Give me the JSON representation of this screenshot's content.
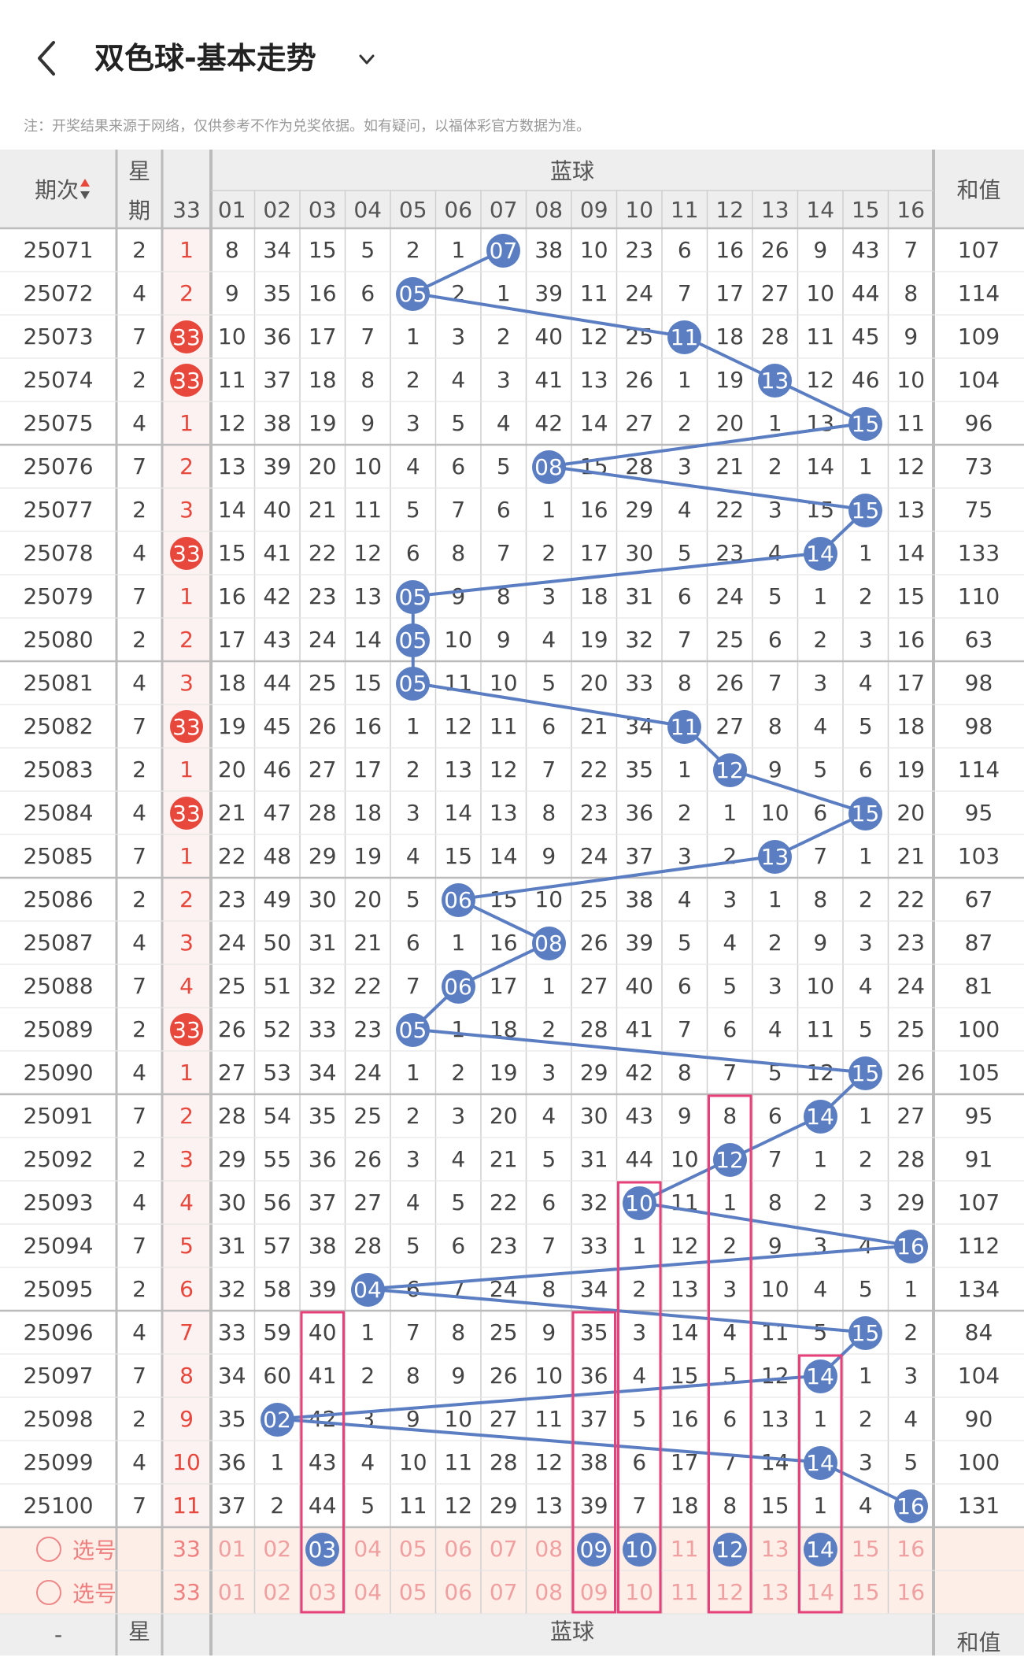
{
  "header": {
    "title": "双色球-基本走势",
    "notice": "注：开奖结果来源于网络，仅供参考不作为兑奖依据。如有疑问，以福体彩官方数据为准。"
  },
  "table": {
    "col_issue": "期次",
    "col_week_1": "星",
    "col_week_2": "期",
    "col_red_33": "33",
    "col_blue_group": "蓝球",
    "col_sum": "和值",
    "blue_numbers": [
      "01",
      "02",
      "03",
      "04",
      "05",
      "06",
      "07",
      "08",
      "09",
      "10",
      "11",
      "12",
      "13",
      "14",
      "15",
      "16"
    ],
    "rows": [
      {
        "issue": "25071",
        "week": "2",
        "c33": "1",
        "c33_hit": false,
        "blue": [
          "8",
          "34",
          "15",
          "5",
          "2",
          "1",
          "07",
          "38",
          "10",
          "23",
          "6",
          "16",
          "26",
          "9",
          "43",
          "7"
        ],
        "hit": 7,
        "sum": "107"
      },
      {
        "issue": "25072",
        "week": "4",
        "c33": "2",
        "c33_hit": false,
        "blue": [
          "9",
          "35",
          "16",
          "6",
          "05",
          "2",
          "1",
          "39",
          "11",
          "24",
          "7",
          "17",
          "27",
          "10",
          "44",
          "8"
        ],
        "hit": 5,
        "sum": "114"
      },
      {
        "issue": "25073",
        "week": "7",
        "c33": "33",
        "c33_hit": true,
        "blue": [
          "10",
          "36",
          "17",
          "7",
          "1",
          "3",
          "2",
          "40",
          "12",
          "25",
          "11",
          "18",
          "28",
          "11",
          "45",
          "9"
        ],
        "hit": 11,
        "sum": "109"
      },
      {
        "issue": "25074",
        "week": "2",
        "c33": "33",
        "c33_hit": true,
        "blue": [
          "11",
          "37",
          "18",
          "8",
          "2",
          "4",
          "3",
          "41",
          "13",
          "26",
          "1",
          "19",
          "13",
          "12",
          "46",
          "10"
        ],
        "hit": 13,
        "sum": "104"
      },
      {
        "issue": "25075",
        "week": "4",
        "c33": "1",
        "c33_hit": false,
        "blue": [
          "12",
          "38",
          "19",
          "9",
          "3",
          "5",
          "4",
          "42",
          "14",
          "27",
          "2",
          "20",
          "1",
          "13",
          "15",
          "11"
        ],
        "hit": 15,
        "sum": "96"
      },
      {
        "issue": "25076",
        "week": "7",
        "c33": "2",
        "c33_hit": false,
        "blue": [
          "13",
          "39",
          "20",
          "10",
          "4",
          "6",
          "5",
          "08",
          "15",
          "28",
          "3",
          "21",
          "2",
          "14",
          "1",
          "12"
        ],
        "hit": 8,
        "sum": "73"
      },
      {
        "issue": "25077",
        "week": "2",
        "c33": "3",
        "c33_hit": false,
        "blue": [
          "14",
          "40",
          "21",
          "11",
          "5",
          "7",
          "6",
          "1",
          "16",
          "29",
          "4",
          "22",
          "3",
          "15",
          "15",
          "13"
        ],
        "hit": 15,
        "sum": "75"
      },
      {
        "issue": "25078",
        "week": "4",
        "c33": "33",
        "c33_hit": true,
        "blue": [
          "15",
          "41",
          "22",
          "12",
          "6",
          "8",
          "7",
          "2",
          "17",
          "30",
          "5",
          "23",
          "4",
          "14",
          "1",
          "14"
        ],
        "hit": 14,
        "sum": "133"
      },
      {
        "issue": "25079",
        "week": "7",
        "c33": "1",
        "c33_hit": false,
        "blue": [
          "16",
          "42",
          "23",
          "13",
          "05",
          "9",
          "8",
          "3",
          "18",
          "31",
          "6",
          "24",
          "5",
          "1",
          "2",
          "15"
        ],
        "hit": 5,
        "sum": "110"
      },
      {
        "issue": "25080",
        "week": "2",
        "c33": "2",
        "c33_hit": false,
        "blue": [
          "17",
          "43",
          "24",
          "14",
          "05",
          "10",
          "9",
          "4",
          "19",
          "32",
          "7",
          "25",
          "6",
          "2",
          "3",
          "16"
        ],
        "hit": 5,
        "sum": "63"
      },
      {
        "issue": "25081",
        "week": "4",
        "c33": "3",
        "c33_hit": false,
        "blue": [
          "18",
          "44",
          "25",
          "15",
          "05",
          "11",
          "10",
          "5",
          "20",
          "33",
          "8",
          "26",
          "7",
          "3",
          "4",
          "17"
        ],
        "hit": 5,
        "sum": "98"
      },
      {
        "issue": "25082",
        "week": "7",
        "c33": "33",
        "c33_hit": true,
        "blue": [
          "19",
          "45",
          "26",
          "16",
          "1",
          "12",
          "11",
          "6",
          "21",
          "34",
          "11",
          "27",
          "8",
          "4",
          "5",
          "18"
        ],
        "hit": 11,
        "sum": "98"
      },
      {
        "issue": "25083",
        "week": "2",
        "c33": "1",
        "c33_hit": false,
        "blue": [
          "20",
          "46",
          "27",
          "17",
          "2",
          "13",
          "12",
          "7",
          "22",
          "35",
          "1",
          "12",
          "9",
          "5",
          "6",
          "19"
        ],
        "hit": 12,
        "sum": "114"
      },
      {
        "issue": "25084",
        "week": "4",
        "c33": "33",
        "c33_hit": true,
        "blue": [
          "21",
          "47",
          "28",
          "18",
          "3",
          "14",
          "13",
          "8",
          "23",
          "36",
          "2",
          "1",
          "10",
          "6",
          "15",
          "20"
        ],
        "hit": 15,
        "sum": "95"
      },
      {
        "issue": "25085",
        "week": "7",
        "c33": "1",
        "c33_hit": false,
        "blue": [
          "22",
          "48",
          "29",
          "19",
          "4",
          "15",
          "14",
          "9",
          "24",
          "37",
          "3",
          "2",
          "13",
          "7",
          "1",
          "21"
        ],
        "hit": 13,
        "sum": "103"
      },
      {
        "issue": "25086",
        "week": "2",
        "c33": "2",
        "c33_hit": false,
        "blue": [
          "23",
          "49",
          "30",
          "20",
          "5",
          "06",
          "15",
          "10",
          "25",
          "38",
          "4",
          "3",
          "1",
          "8",
          "2",
          "22"
        ],
        "hit": 6,
        "sum": "67"
      },
      {
        "issue": "25087",
        "week": "4",
        "c33": "3",
        "c33_hit": false,
        "blue": [
          "24",
          "50",
          "31",
          "21",
          "6",
          "1",
          "16",
          "08",
          "26",
          "39",
          "5",
          "4",
          "2",
          "9",
          "3",
          "23"
        ],
        "hit": 8,
        "sum": "87"
      },
      {
        "issue": "25088",
        "week": "7",
        "c33": "4",
        "c33_hit": false,
        "blue": [
          "25",
          "51",
          "32",
          "22",
          "7",
          "06",
          "17",
          "1",
          "27",
          "40",
          "6",
          "5",
          "3",
          "10",
          "4",
          "24"
        ],
        "hit": 6,
        "sum": "81"
      },
      {
        "issue": "25089",
        "week": "2",
        "c33": "33",
        "c33_hit": true,
        "blue": [
          "26",
          "52",
          "33",
          "23",
          "05",
          "1",
          "18",
          "2",
          "28",
          "41",
          "7",
          "6",
          "4",
          "11",
          "5",
          "25"
        ],
        "hit": 5,
        "sum": "100"
      },
      {
        "issue": "25090",
        "week": "4",
        "c33": "1",
        "c33_hit": false,
        "blue": [
          "27",
          "53",
          "34",
          "24",
          "1",
          "2",
          "19",
          "3",
          "29",
          "42",
          "8",
          "7",
          "5",
          "12",
          "15",
          "26"
        ],
        "hit": 15,
        "sum": "105"
      },
      {
        "issue": "25091",
        "week": "7",
        "c33": "2",
        "c33_hit": false,
        "blue": [
          "28",
          "54",
          "35",
          "25",
          "2",
          "3",
          "20",
          "4",
          "30",
          "43",
          "9",
          "8",
          "6",
          "14",
          "1",
          "27"
        ],
        "hit": 14,
        "sum": "95"
      },
      {
        "issue": "25092",
        "week": "2",
        "c33": "3",
        "c33_hit": false,
        "blue": [
          "29",
          "55",
          "36",
          "26",
          "3",
          "4",
          "21",
          "5",
          "31",
          "44",
          "10",
          "12",
          "7",
          "1",
          "2",
          "28"
        ],
        "hit": 12,
        "sum": "91"
      },
      {
        "issue": "25093",
        "week": "4",
        "c33": "4",
        "c33_hit": false,
        "blue": [
          "30",
          "56",
          "37",
          "27",
          "4",
          "5",
          "22",
          "6",
          "32",
          "10",
          "11",
          "1",
          "8",
          "2",
          "3",
          "29"
        ],
        "hit": 10,
        "sum": "107"
      },
      {
        "issue": "25094",
        "week": "7",
        "c33": "5",
        "c33_hit": false,
        "blue": [
          "31",
          "57",
          "38",
          "28",
          "5",
          "6",
          "23",
          "7",
          "33",
          "1",
          "12",
          "2",
          "9",
          "3",
          "4",
          "16"
        ],
        "hit": 16,
        "sum": "112"
      },
      {
        "issue": "25095",
        "week": "2",
        "c33": "6",
        "c33_hit": false,
        "blue": [
          "32",
          "58",
          "39",
          "04",
          "6",
          "7",
          "24",
          "8",
          "34",
          "2",
          "13",
          "3",
          "10",
          "4",
          "5",
          "1"
        ],
        "hit": 4,
        "sum": "134"
      },
      {
        "issue": "25096",
        "week": "4",
        "c33": "7",
        "c33_hit": false,
        "blue": [
          "33",
          "59",
          "40",
          "1",
          "7",
          "8",
          "25",
          "9",
          "35",
          "3",
          "14",
          "4",
          "11",
          "5",
          "15",
          "2"
        ],
        "hit": 15,
        "sum": "84"
      },
      {
        "issue": "25097",
        "week": "7",
        "c33": "8",
        "c33_hit": false,
        "blue": [
          "34",
          "60",
          "41",
          "2",
          "8",
          "9",
          "26",
          "10",
          "36",
          "4",
          "15",
          "5",
          "12",
          "14",
          "1",
          "3"
        ],
        "hit": 14,
        "sum": "104"
      },
      {
        "issue": "25098",
        "week": "2",
        "c33": "9",
        "c33_hit": false,
        "blue": [
          "35",
          "02",
          "42",
          "3",
          "9",
          "10",
          "27",
          "11",
          "37",
          "5",
          "16",
          "6",
          "13",
          "1",
          "2",
          "4"
        ],
        "hit": 2,
        "sum": "90"
      },
      {
        "issue": "25099",
        "week": "4",
        "c33": "10",
        "c33_hit": false,
        "blue": [
          "36",
          "1",
          "43",
          "4",
          "10",
          "11",
          "28",
          "12",
          "38",
          "6",
          "17",
          "7",
          "14",
          "14",
          "3",
          "5"
        ],
        "hit": 14,
        "sum": "100"
      },
      {
        "issue": "25100",
        "week": "7",
        "c33": "11",
        "c33_hit": false,
        "blue": [
          "37",
          "2",
          "44",
          "5",
          "11",
          "12",
          "29",
          "13",
          "39",
          "7",
          "18",
          "8",
          "15",
          "1",
          "4",
          "16"
        ],
        "hit": 16,
        "sum": "131"
      }
    ],
    "pick_rows": [
      {
        "label": "选号",
        "c33": "33",
        "nums": [
          "01",
          "02",
          "03",
          "04",
          "05",
          "06",
          "07",
          "08",
          "09",
          "10",
          "11",
          "12",
          "13",
          "14",
          "15",
          "16"
        ],
        "selected": [
          3,
          9,
          10,
          12,
          14
        ]
      },
      {
        "label": "选号",
        "c33": "33",
        "nums": [
          "01",
          "02",
          "03",
          "04",
          "05",
          "06",
          "07",
          "08",
          "09",
          "10",
          "11",
          "12",
          "13",
          "14",
          "15",
          "16"
        ],
        "selected": []
      }
    ],
    "footer": {
      "issue": "-",
      "week": "星",
      "blue_group": "蓝球",
      "sum": "和值"
    }
  },
  "colors": {
    "blue_ball": "#5b7ec2",
    "red_ball": "#e8473c",
    "red_text": "#e8473c",
    "highlight_box": "#e8407a",
    "header_bg": "#eeeeee",
    "pick_bg": "#fdeee8",
    "grid_line": "#cfcfcf"
  },
  "icons": {
    "back": "back-chevron-icon",
    "dropdown": "chevron-down-icon",
    "sort": "sort-arrows-icon"
  }
}
